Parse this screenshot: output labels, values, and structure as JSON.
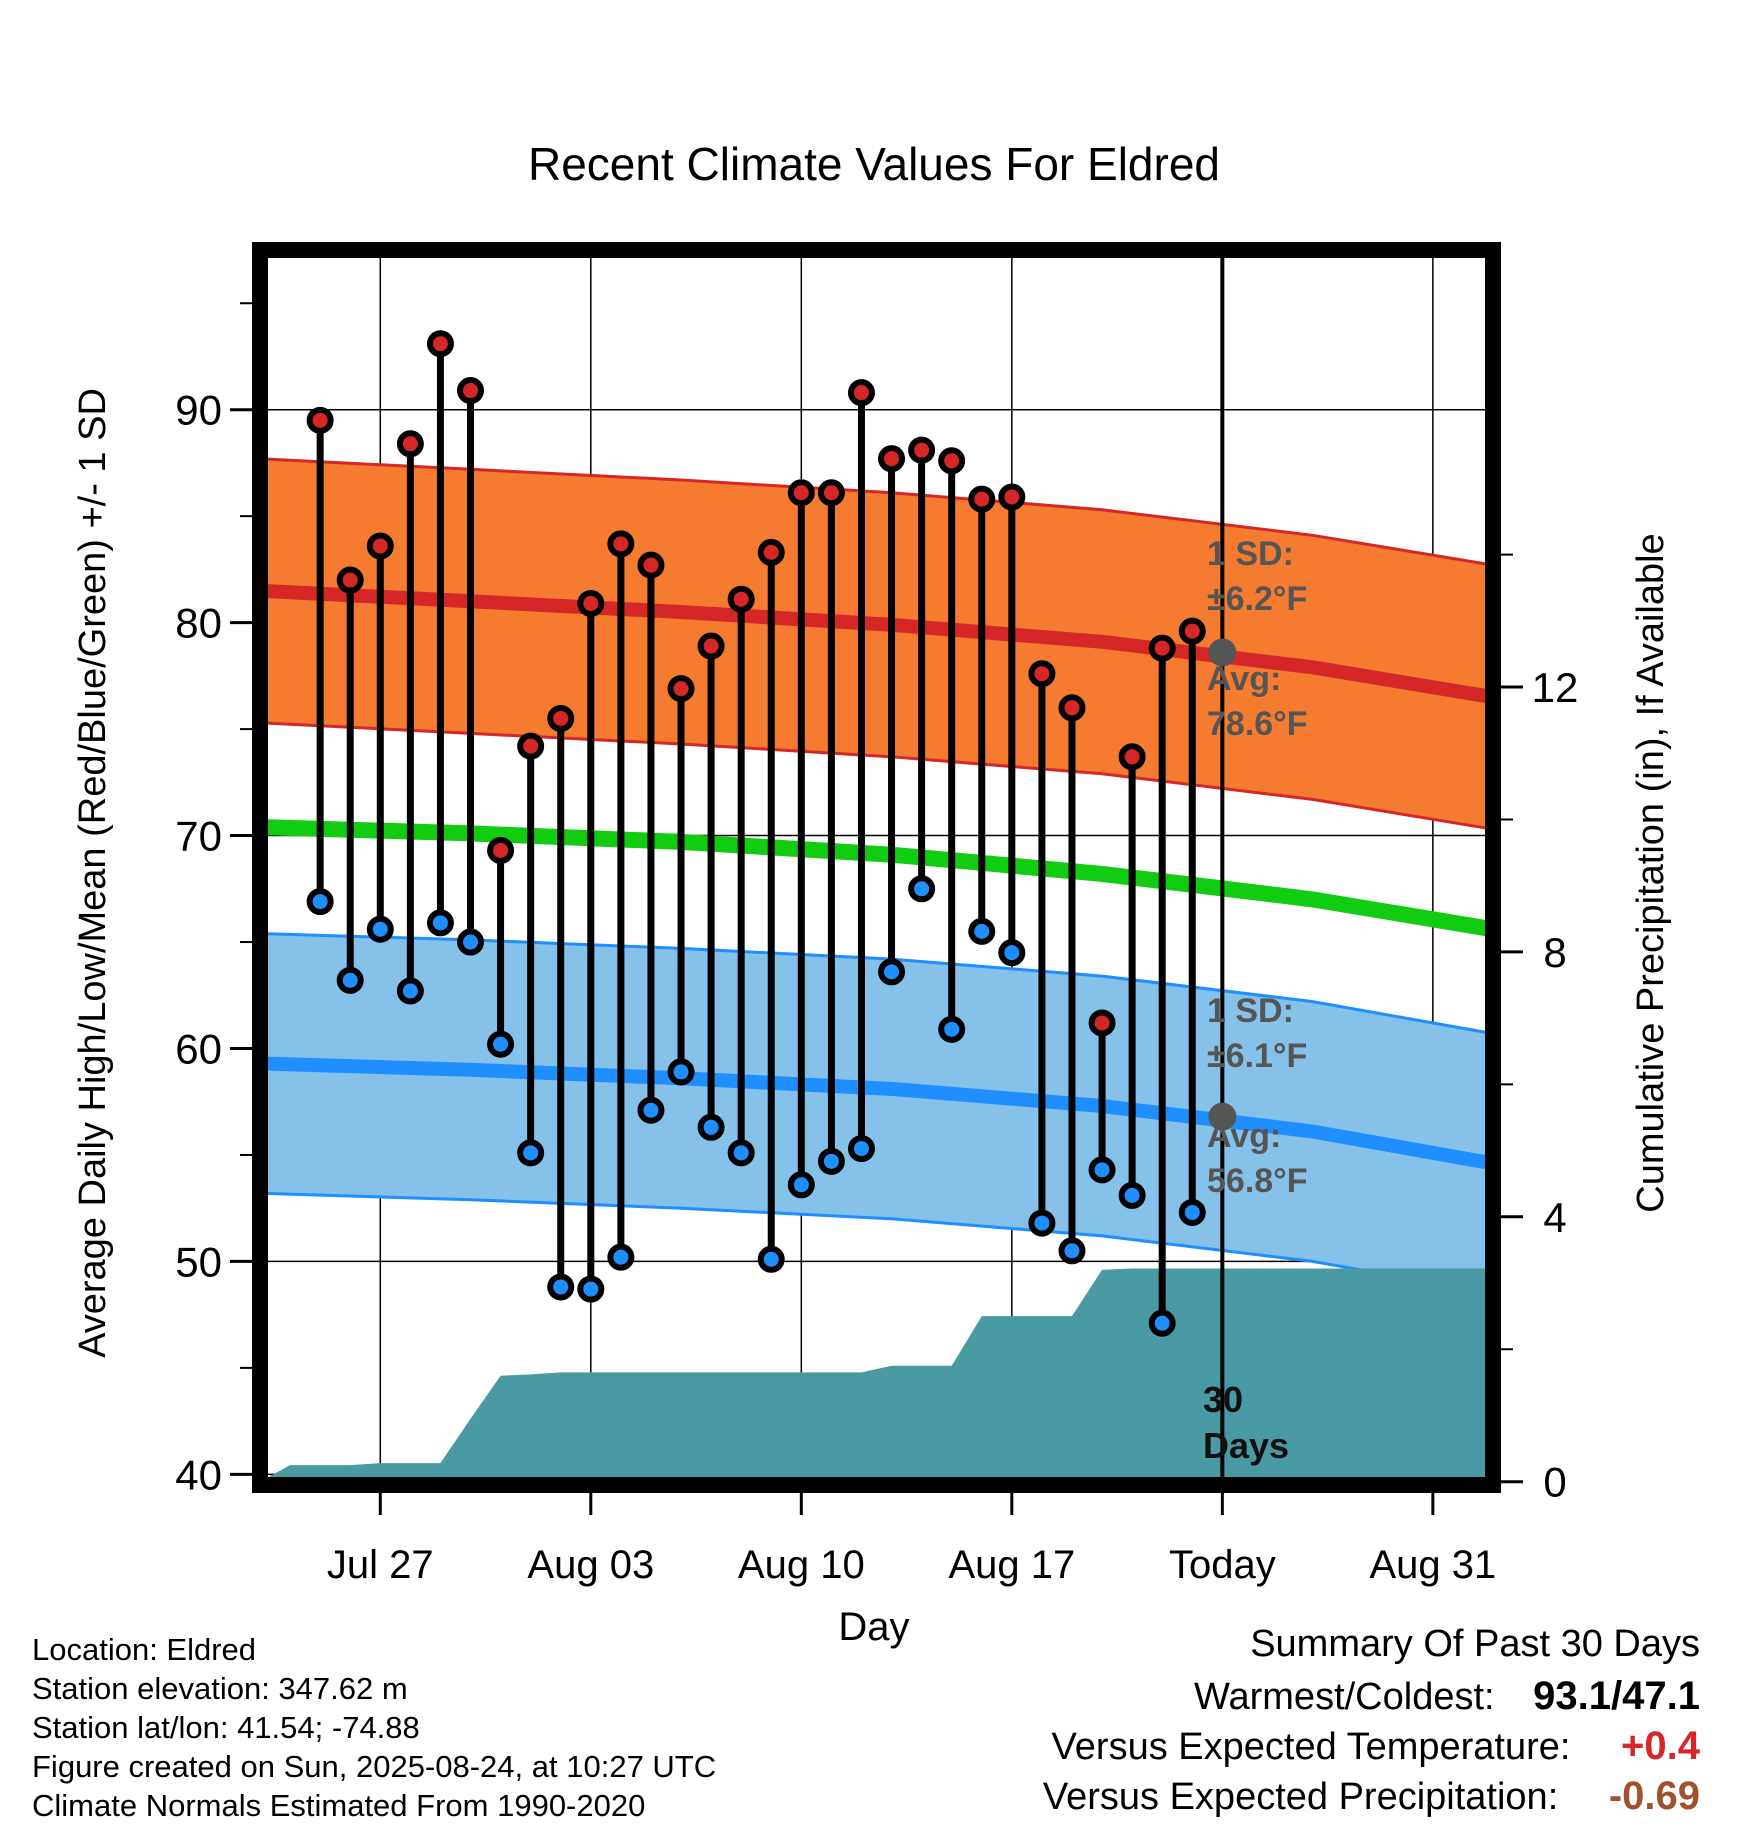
{
  "chart_data": {
    "type": "line",
    "title": "Recent Climate Values For Eldred",
    "xlabel": "Day",
    "ylabel": "Average Daily High/Low/Mean (Red/Blue/Green) +/- 1 SD",
    "y2label": "Cumulative Precipitation (in), If Available",
    "xlim": [
      "2025-07-23",
      "2025-09-02"
    ],
    "ylim": [
      39.5,
      97.5
    ],
    "y2lim": [
      -0.05,
      18.6
    ],
    "xticks": [
      {
        "date": "2025-07-27",
        "label": "Jul 27"
      },
      {
        "date": "2025-08-03",
        "label": "Aug 03"
      },
      {
        "date": "2025-08-10",
        "label": "Aug 10"
      },
      {
        "date": "2025-08-17",
        "label": "Aug 17"
      },
      {
        "date": "2025-08-24",
        "label": "Today"
      },
      {
        "date": "2025-08-31",
        "label": "Aug 31"
      }
    ],
    "yticks": [
      "40",
      "50",
      "60",
      "70",
      "80",
      "90"
    ],
    "y2ticks": [
      "0",
      "4",
      "8",
      "12"
    ],
    "grid": true,
    "today": "2025-08-24",
    "dates": [
      "2025-07-25",
      "2025-07-26",
      "2025-07-27",
      "2025-07-28",
      "2025-07-29",
      "2025-07-30",
      "2025-07-31",
      "2025-08-01",
      "2025-08-02",
      "2025-08-03",
      "2025-08-04",
      "2025-08-05",
      "2025-08-06",
      "2025-08-07",
      "2025-08-08",
      "2025-08-09",
      "2025-08-10",
      "2025-08-11",
      "2025-08-12",
      "2025-08-13",
      "2025-08-14",
      "2025-08-15",
      "2025-08-16",
      "2025-08-17",
      "2025-08-18",
      "2025-08-19",
      "2025-08-20",
      "2025-08-21",
      "2025-08-22",
      "2025-08-23"
    ],
    "series": [
      {
        "name": "High",
        "color": "#d62728",
        "values": [
          89.5,
          82.0,
          83.6,
          88.4,
          93.1,
          90.9,
          69.3,
          74.2,
          75.5,
          80.9,
          83.7,
          82.7,
          76.9,
          78.9,
          81.1,
          83.3,
          86.1,
          86.1,
          90.8,
          87.7,
          88.1,
          87.6,
          85.8,
          85.9,
          77.6,
          76.0,
          61.2,
          73.7,
          78.8,
          79.6
        ]
      },
      {
        "name": "Low",
        "color": "#1f8fff",
        "values": [
          66.9,
          63.2,
          65.6,
          62.7,
          65.9,
          65.0,
          60.2,
          55.1,
          48.8,
          48.7,
          50.2,
          57.1,
          58.9,
          56.3,
          55.1,
          50.1,
          53.6,
          54.7,
          55.3,
          63.6,
          67.5,
          60.9,
          65.5,
          64.5,
          51.8,
          50.5,
          54.3,
          53.1,
          47.1,
          52.3
        ]
      }
    ],
    "normals": {
      "dates": [
        "2025-07-23",
        "2025-07-30",
        "2025-08-06",
        "2025-08-13",
        "2025-08-20",
        "2025-08-27",
        "2025-09-02"
      ],
      "high_avg": [
        81.5,
        81.0,
        80.5,
        79.9,
        79.1,
        77.9,
        76.5
      ],
      "high_sd": 6.2,
      "low_avg": [
        59.3,
        59.0,
        58.6,
        58.1,
        57.3,
        56.1,
        54.6
      ],
      "low_sd": 6.1,
      "mean_avg": [
        70.4,
        70.1,
        69.7,
        69.1,
        68.2,
        67.0,
        65.6
      ]
    },
    "precip_cumulative": {
      "dates": [
        "2025-07-23",
        "2025-07-24",
        "2025-07-25",
        "2025-07-26",
        "2025-07-27",
        "2025-07-28",
        "2025-07-29",
        "2025-07-30",
        "2025-07-31",
        "2025-08-01",
        "2025-08-02",
        "2025-08-03",
        "2025-08-07",
        "2025-08-12",
        "2025-08-13",
        "2025-08-14",
        "2025-08-15",
        "2025-08-16",
        "2025-08-17",
        "2025-08-18",
        "2025-08-19",
        "2025-08-20",
        "2025-08-21",
        "2025-09-02"
      ],
      "values": [
        0,
        0.25,
        0.25,
        0.25,
        0.28,
        0.28,
        0.28,
        0.95,
        1.6,
        1.62,
        1.65,
        1.65,
        1.65,
        1.65,
        1.75,
        1.75,
        1.75,
        2.5,
        2.5,
        2.5,
        2.5,
        3.2,
        3.22,
        3.22
      ]
    },
    "annotations": {
      "high_sd": "1 SD:",
      "high_sd_value": "±6.2°F",
      "high_avg_label": "Avg:",
      "high_avg_value": "78.6°F",
      "low_sd": "1 SD:",
      "low_sd_value": "±6.1°F",
      "low_avg_label": "Avg:",
      "low_avg_value": "56.8°F",
      "today_avg_high": 78.6,
      "today_avg_low": 56.8,
      "days_number": "30",
      "days_word": "Days"
    },
    "colors": {
      "high_band": "#f47b30",
      "high_line": "#d62728",
      "low_band": "#85c1e9",
      "low_line": "#1f8fff",
      "mean_line": "#11cc11",
      "precip": "#4a9aa3"
    }
  },
  "footer": {
    "location": "Location: Eldred",
    "elevation": "Station elevation: 347.62 m",
    "latlon": "Station lat/lon: 41.54; -74.88",
    "created": "Figure created on Sun, 2025-08-24, at 10:27 UTC",
    "normals": "Climate Normals Estimated From 1990-2020"
  },
  "summary": {
    "title": "Summary Of Past 30 Days",
    "warmest_label": "Warmest/Coldest:",
    "warmest_value": "93.1",
    "coldest_value": "47.1",
    "temp_label": "Versus Expected Temperature:",
    "temp_value": "+0.4",
    "temp_color": "#d62728",
    "precip_label": "Versus Expected Precipitation:",
    "precip_value": "-0.69",
    "precip_color": "#a0522d"
  }
}
